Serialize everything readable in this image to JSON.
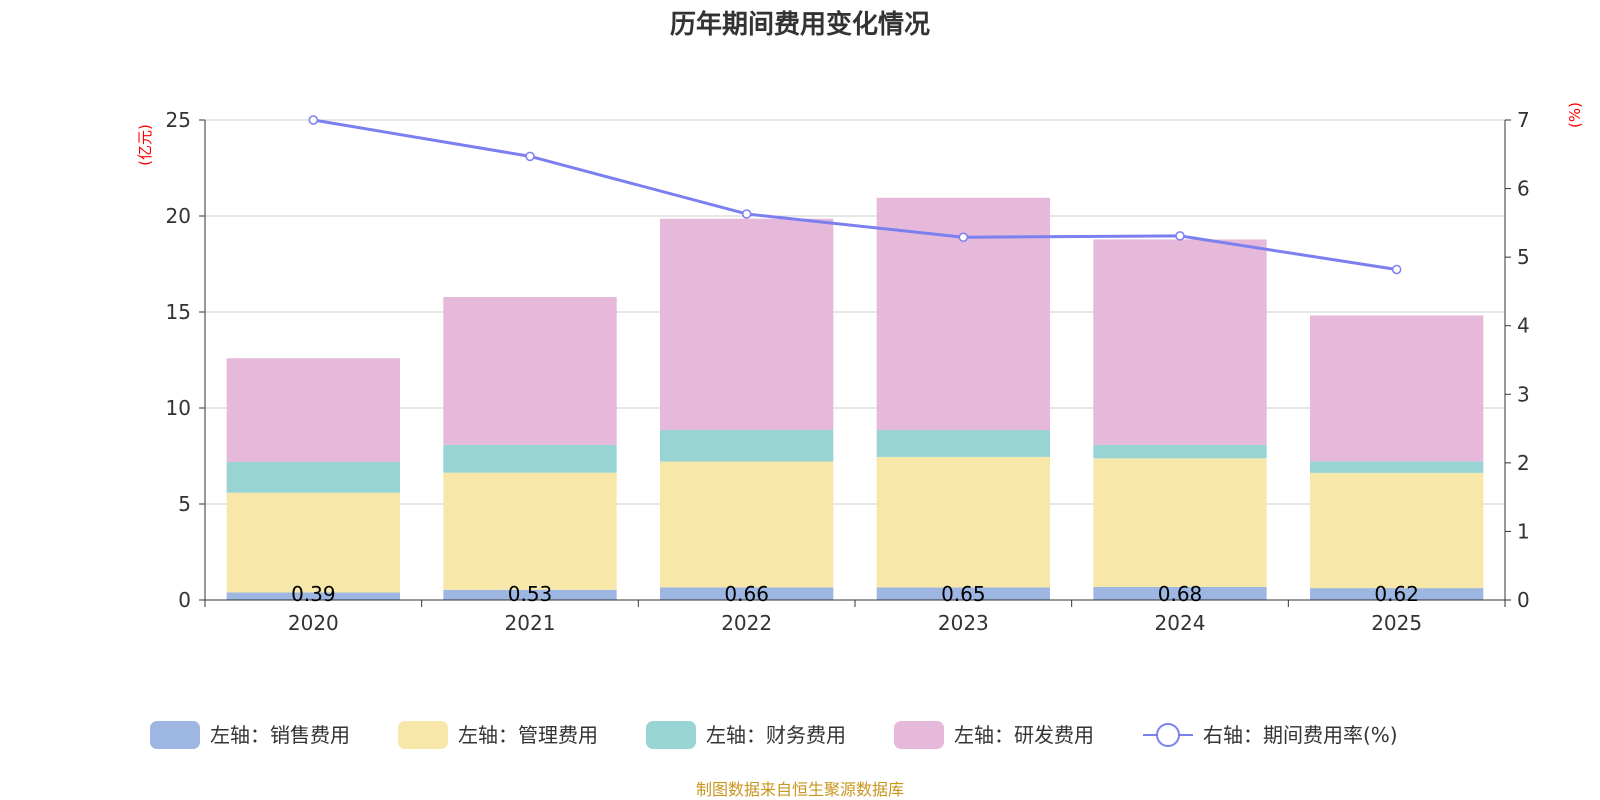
{
  "chart_data": {
    "type": "bar",
    "title": "历年期间费用变化情况",
    "categories": [
      "2020",
      "2021",
      "2022",
      "2023",
      "2024",
      "2025"
    ],
    "left_axis": {
      "unit": "(亿元)",
      "ylim": [
        0,
        25
      ],
      "ticks": [
        "0",
        "5",
        "10",
        "15",
        "20",
        "25"
      ]
    },
    "right_axis": {
      "unit": "(%)",
      "ylim": [
        0,
        7
      ],
      "ticks": [
        "0",
        "1",
        "2",
        "3",
        "4",
        "5",
        "6",
        "7"
      ]
    },
    "series": [
      {
        "name": "左轴：销售费用",
        "type": "bar",
        "stack": true,
        "axis": "left",
        "color": "#9db6e2",
        "values": [
          0.39,
          0.53,
          0.66,
          0.65,
          0.68,
          0.62
        ],
        "labels": [
          "0.39",
          "0.53",
          "0.66",
          "0.65",
          "0.68",
          "0.62"
        ]
      },
      {
        "name": "左轴：管理费用",
        "type": "bar",
        "stack": true,
        "axis": "left",
        "color": "#f7e7a8",
        "values": [
          5.2,
          6.1,
          6.55,
          6.8,
          6.7,
          6.0
        ]
      },
      {
        "name": "左轴：财务费用",
        "type": "bar",
        "stack": true,
        "axis": "left",
        "color": "#98d4d4",
        "values": [
          1.6,
          1.45,
          1.65,
          1.4,
          0.7,
          0.6
        ]
      },
      {
        "name": "左轴：研发费用",
        "type": "bar",
        "stack": true,
        "axis": "left",
        "color": "#e6b8d9",
        "values": [
          5.4,
          7.7,
          11.0,
          12.1,
          10.7,
          7.6
        ]
      },
      {
        "name": "右轴：期间费用率(%)",
        "type": "line",
        "axis": "right",
        "color": "#7b7ff0",
        "values": [
          7.0,
          6.47,
          5.63,
          5.29,
          5.31,
          4.82
        ]
      }
    ],
    "grid": true,
    "legend_position": "bottom"
  },
  "footer": {
    "source": "制图数据来自恒生聚源数据库"
  }
}
